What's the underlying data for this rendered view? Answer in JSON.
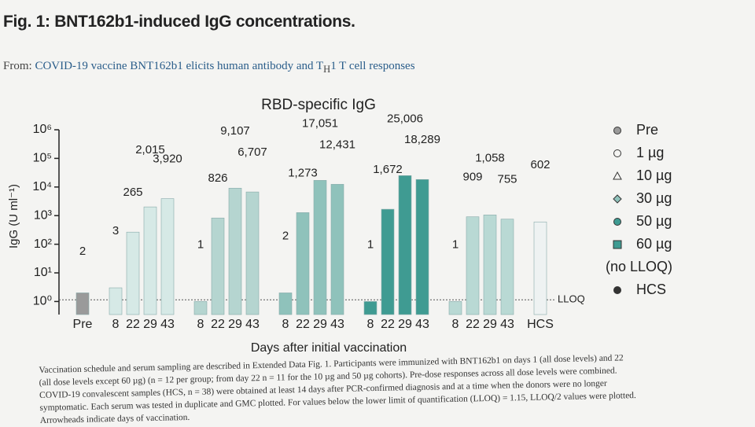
{
  "header": {
    "title": "Fig. 1: BNT162b1-induced IgG concentrations.",
    "from_label": "From:",
    "source": "COVID-19 vaccine BNT162b1 elicits human antibody and T",
    "source_sub": "H",
    "source_end": "1 T cell responses"
  },
  "chart_data": {
    "type": "bar",
    "title": "RBD-specific IgG",
    "y_label": "IgG (U ml⁻¹)",
    "x_label": "Days after initial vaccination",
    "log_scale": true,
    "ylim": [
      0.35,
      1000000
    ],
    "yticks": [
      {
        "value": 1,
        "label": "10⁰"
      },
      {
        "value": 10,
        "label": "10¹"
      },
      {
        "value": 100,
        "label": "10²"
      },
      {
        "value": 1000,
        "label": "10³"
      },
      {
        "value": 10000,
        "label": "10⁴"
      },
      {
        "value": 100000,
        "label": "10⁵"
      },
      {
        "value": 1000000,
        "label": "10⁶"
      }
    ],
    "categories": [
      "Pre",
      "8",
      "22",
      "29",
      "43",
      "8",
      "22",
      "29",
      "43",
      "8",
      "22",
      "29",
      "43",
      "8",
      "22",
      "29",
      "43",
      "8",
      "22",
      "29",
      "43",
      "HCS"
    ],
    "values": [
      2,
      3,
      265,
      2015,
      3920,
      1,
      826,
      9107,
      6707,
      2,
      1273,
      17051,
      12431,
      1,
      1672,
      25006,
      18289,
      1,
      909,
      1058,
      755,
      602
    ],
    "value_labels": [
      "2",
      "3",
      "265",
      "2,015",
      "3,920",
      "1",
      "826",
      "9,107",
      "6,707",
      "2",
      "1,273",
      "17,051",
      "12,431",
      "1",
      "1,672",
      "25,006",
      "18,289",
      "1",
      "909",
      "1,058",
      "755",
      "602"
    ],
    "colors": [
      "#9a9a9a",
      "#d6e9e6",
      "#d6e9e6",
      "#d6e9e6",
      "#d6e9e6",
      "#b5d5d0",
      "#b5d5d0",
      "#b5d5d0",
      "#b5d5d0",
      "#8fc2bb",
      "#8fc2bb",
      "#8fc2bb",
      "#8fc2bb",
      "#3f9b92",
      "#3f9b92",
      "#3f9b92",
      "#3f9b92",
      "#b9d9d4",
      "#b9d9d4",
      "#b9d9d4",
      "#b9d9d4",
      "#eef2f2"
    ],
    "reference_line": {
      "value": 1.15,
      "label": "LLOQ"
    },
    "legend": [
      "Pre",
      "1 µg",
      "10 µg",
      "30 µg",
      "50 µg",
      "60 µg",
      "(no LLOQ)",
      "HCS"
    ]
  },
  "caption": "Vaccination schedule and serum sampling are described in Extended Data Fig. 1. Participants were immunized with BNT162b1 on days 1 (all dose levels) and 22 (all dose levels except 60 µg) (n = 12 per group; from day 22 n = 11 for the 10 µg and 50 µg cohorts). Pre-dose responses across all dose levels were combined. COVID-19 convalescent samples (HCS, n = 38) were obtained at least 14 days after PCR-confirmed diagnosis and at a time when the donors were no longer symptomatic. Each serum was tested in duplicate and GMC plotted. For values below the lower limit of quantification (LLOQ) = 1.15, LLOQ/2 values were plotted. Arrowheads indicate days of vaccination."
}
